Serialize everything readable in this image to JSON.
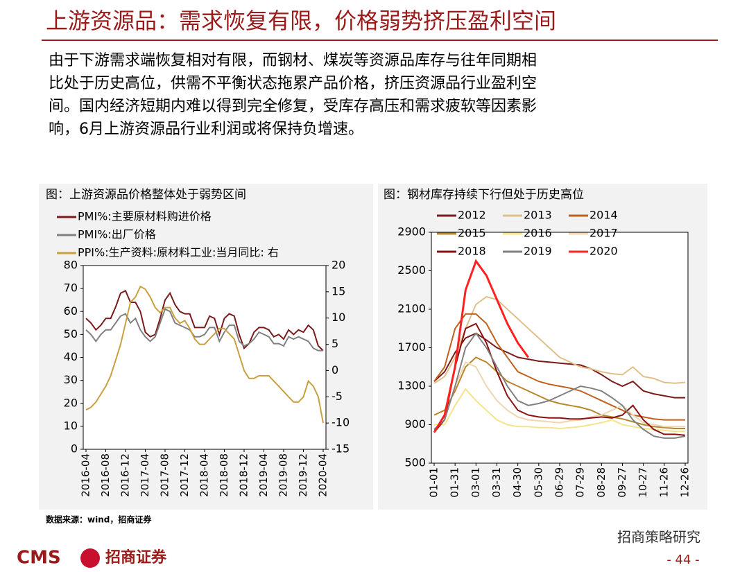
{
  "header": {
    "title": "上游资源品：需求恢复有限，价格弱势挤压盈利空间"
  },
  "body": {
    "lines": [
      "由于下游需求端恢复相对有限，而钢材、煤炭等资源品库存与往年同期相",
      "比处于历史高位，供需不平衡状态拖累产品价格，挤压资源品行业盈利空",
      "间。国内经济短期内难以得到完全修复，受库存高压和需求疲软等因素影",
      "响，6月上游资源品行业利润或将保持负增速。"
    ]
  },
  "chart_data": [
    {
      "type": "line",
      "title": "图：上游资源品价格整体处于弱势区间",
      "categories": [
        "2016-04",
        null,
        null,
        null,
        "2016-08",
        null,
        null,
        null,
        "2016-12",
        null,
        null,
        null,
        "2017-04",
        null,
        null,
        null,
        "2017-08",
        null,
        null,
        null,
        "2017-12",
        null,
        null,
        null,
        "2018-04",
        null,
        null,
        null,
        "2018-08",
        null,
        null,
        null,
        "2018-12",
        null,
        null,
        null,
        "2019-04",
        null,
        null,
        null,
        "2019-08",
        null,
        null,
        null,
        "2019-12",
        null,
        null,
        null,
        "2020-04"
      ],
      "ylim": [
        0,
        80
      ],
      "yticks": [
        0,
        10,
        20,
        30,
        40,
        50,
        60,
        70,
        80
      ],
      "y2lim": [
        -15,
        20
      ],
      "y2ticks": [
        -15,
        -10,
        -5,
        0,
        5,
        10,
        15,
        20
      ],
      "series": [
        {
          "name": "PMI%:主要原材料购进价格",
          "color": "#7b1a1a",
          "values": [
            57,
            55,
            52,
            54,
            57,
            57,
            62,
            68,
            69,
            64,
            64,
            60,
            51,
            49,
            50,
            57,
            65,
            68,
            63,
            60,
            59,
            59,
            53,
            53,
            53,
            58,
            57,
            50,
            57,
            59,
            58,
            50,
            44,
            46,
            51,
            53,
            53,
            52,
            49,
            50,
            48,
            52,
            50,
            52,
            51,
            54,
            52,
            45,
            43
          ]
        },
        {
          "name": "PMI%:出厂价格",
          "color": "#808080",
          "values": [
            52,
            50,
            47,
            50,
            52,
            52,
            55,
            58,
            59,
            55,
            57,
            52,
            49,
            47,
            49,
            55,
            61,
            60,
            55,
            54,
            53,
            52,
            49,
            49,
            50,
            53,
            53,
            47,
            51,
            54,
            54,
            47,
            45,
            46,
            48,
            51,
            50,
            49,
            46,
            46,
            45,
            49,
            48,
            49,
            48,
            47,
            44,
            43,
            43
          ]
        },
        {
          "name": "PPI%:生产资料:原材料工业:当月同比: 右",
          "color": "#c8a040",
          "axis": "y2",
          "values": [
            -7.5,
            -7,
            -6,
            -4.5,
            -3,
            -1,
            2,
            5,
            9,
            13,
            14,
            16,
            15.5,
            14,
            12,
            11,
            12,
            12,
            10,
            9,
            9.5,
            8,
            6,
            5,
            5,
            6,
            7,
            8,
            8,
            7,
            6,
            3,
            0,
            -1.5,
            -1.5,
            -1,
            -1,
            -1,
            -2,
            -3,
            -4,
            -5,
            -6,
            -6,
            -5,
            -2,
            -3,
            -5,
            -10
          ]
        }
      ]
    },
    {
      "type": "line",
      "title": "图：钢材库存持续下行但处于历史高位",
      "categories": [
        "01-01",
        null,
        "01-31",
        null,
        "03-01",
        null,
        "03-31",
        null,
        "04-30",
        null,
        "05-30",
        null,
        "06-29",
        null,
        "07-29",
        null,
        "08-28",
        null,
        "09-27",
        null,
        "10-27",
        null,
        "11-26",
        null,
        "12-26"
      ],
      "ylim": [
        500,
        2900
      ],
      "yticks": [
        500,
        900,
        1300,
        1700,
        2100,
        2500,
        2900
      ],
      "series": [
        {
          "name": "2012",
          "color": "#7b1a1a",
          "values": [
            1350,
            1450,
            1650,
            1800,
            1850,
            1780,
            1700,
            1650,
            1600,
            1580,
            1560,
            1550,
            1540,
            1530,
            1520,
            1480,
            1420,
            1350,
            1300,
            1350,
            1250,
            1220,
            1200,
            1180,
            1180
          ]
        },
        {
          "name": "2013",
          "color": "#e0c08a",
          "values": [
            1330,
            1400,
            1600,
            1900,
            2150,
            2230,
            2200,
            2100,
            2000,
            1900,
            1800,
            1700,
            1600,
            1550,
            1500,
            1480,
            1450,
            1430,
            1420,
            1500,
            1400,
            1380,
            1340,
            1330,
            1340
          ]
        },
        {
          "name": "2014",
          "color": "#c0601a",
          "values": [
            1350,
            1500,
            1900,
            2050,
            2050,
            1950,
            1750,
            1600,
            1450,
            1400,
            1350,
            1320,
            1300,
            1280,
            1250,
            1200,
            1150,
            1100,
            1050,
            1000,
            980,
            960,
            950,
            950,
            950
          ]
        },
        {
          "name": "2015",
          "color": "#b8862a",
          "values": [
            1000,
            1050,
            1250,
            1500,
            1600,
            1550,
            1450,
            1350,
            1300,
            1250,
            1200,
            1150,
            1120,
            1100,
            1080,
            1050,
            1000,
            980,
            960,
            930,
            900,
            880,
            870,
            860,
            860
          ]
        },
        {
          "name": "2016",
          "color": "#f5e38a",
          "values": [
            900,
            900,
            1100,
            1270,
            1150,
            1050,
            950,
            900,
            880,
            880,
            870,
            870,
            860,
            870,
            880,
            900,
            920,
            950,
            900,
            880,
            860,
            850,
            840,
            830,
            830
          ]
        },
        {
          "name": "2017",
          "color": "#efd6b0",
          "values": [
            850,
            950,
            1300,
            1550,
            1500,
            1300,
            1150,
            1050,
            980,
            950,
            940,
            930,
            920,
            940,
            950,
            980,
            1000,
            1050,
            1100,
            1000,
            920,
            900,
            880,
            880,
            880
          ]
        },
        {
          "name": "2018",
          "color": "#8b1010",
          "values": [
            820,
            950,
            1500,
            1900,
            1950,
            1750,
            1450,
            1200,
            1050,
            1000,
            980,
            970,
            970,
            960,
            960,
            970,
            980,
            970,
            1000,
            1100,
            950,
            850,
            800,
            800,
            790
          ]
        },
        {
          "name": "2019",
          "color": "#808080",
          "values": [
            850,
            950,
            1300,
            1700,
            1850,
            1700,
            1500,
            1300,
            1150,
            1100,
            1120,
            1150,
            1200,
            1250,
            1300,
            1280,
            1250,
            1180,
            1100,
            950,
            850,
            780,
            760,
            760,
            780
          ]
        },
        {
          "name": "2020",
          "color": "#ff2020",
          "values": [
            820,
            1000,
            1500,
            2300,
            2600,
            2450,
            2200,
            1950,
            1750,
            1600,
            null,
            null,
            null,
            null,
            null,
            null,
            null,
            null,
            null,
            null,
            null,
            null,
            null,
            null,
            null
          ]
        }
      ]
    }
  ],
  "source": "数据来源：wind，招商证券",
  "footer": {
    "logo": "CMS",
    "company": "招商证券",
    "wechat": "招商策略研究",
    "page": "- 44 -"
  }
}
